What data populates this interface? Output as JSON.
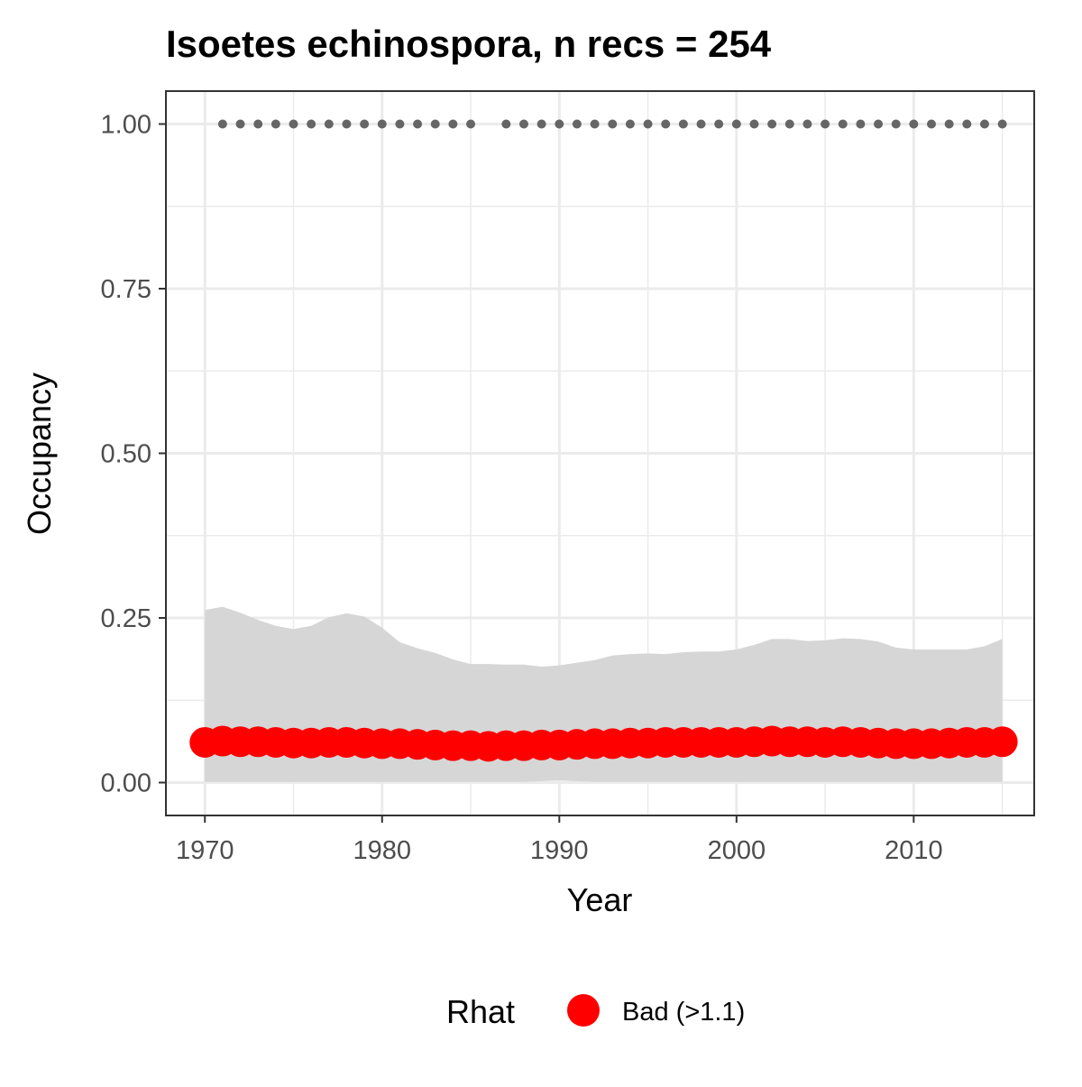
{
  "chart_data": {
    "type": "line",
    "title": "Isoetes echinospora, n recs = 254",
    "xlabel": "Year",
    "ylabel": "Occupancy",
    "xlim": [
      1967.8,
      2016.8
    ],
    "ylim": [
      -0.05,
      1.05
    ],
    "x_ticks": [
      1970,
      1980,
      1990,
      2000,
      2010
    ],
    "x_tick_labels": [
      "1970",
      "1980",
      "1990",
      "2000",
      "2010"
    ],
    "y_ticks": [
      0,
      0.25,
      0.5,
      0.75,
      1.0
    ],
    "y_tick_labels": [
      "0.00",
      "0.25",
      "0.50",
      "0.75",
      "1.00"
    ],
    "grid": true,
    "legend": {
      "title": "Rhat",
      "position": "bottom",
      "entries": [
        {
          "label": "Bad (>1.1)",
          "color": "#ff0000"
        }
      ]
    },
    "colors": {
      "occupancy_point": "#ff0000",
      "ci_ribbon": "#d6d6d6",
      "record_dot": "#666666",
      "panel_border": "#333333",
      "grid_major": "#ebebeb",
      "tick_label": "#4d4d4d"
    },
    "series": [
      {
        "role": "occupancy_mean",
        "years": [
          1970,
          1971,
          1972,
          1973,
          1974,
          1975,
          1976,
          1977,
          1978,
          1979,
          1980,
          1981,
          1982,
          1983,
          1984,
          1985,
          1986,
          1987,
          1988,
          1989,
          1990,
          1991,
          1992,
          1993,
          1994,
          1995,
          1996,
          1997,
          1998,
          1999,
          2000,
          2001,
          2002,
          2003,
          2004,
          2005,
          2006,
          2007,
          2008,
          2009,
          2010,
          2011,
          2012,
          2013,
          2014,
          2015
        ],
        "values": [
          0.061,
          0.063,
          0.062,
          0.062,
          0.061,
          0.06,
          0.06,
          0.061,
          0.061,
          0.06,
          0.059,
          0.059,
          0.058,
          0.057,
          0.056,
          0.056,
          0.055,
          0.056,
          0.056,
          0.057,
          0.057,
          0.058,
          0.059,
          0.059,
          0.06,
          0.06,
          0.061,
          0.061,
          0.061,
          0.061,
          0.061,
          0.062,
          0.063,
          0.062,
          0.062,
          0.061,
          0.062,
          0.061,
          0.06,
          0.059,
          0.059,
          0.059,
          0.06,
          0.061,
          0.061,
          0.062
        ]
      },
      {
        "role": "ci_upper",
        "years": [
          1970,
          1971,
          1972,
          1973,
          1974,
          1975,
          1976,
          1977,
          1978,
          1979,
          1980,
          1981,
          1982,
          1983,
          1984,
          1985,
          1986,
          1987,
          1988,
          1989,
          1990,
          1991,
          1992,
          1993,
          1994,
          1995,
          1996,
          1997,
          1998,
          1999,
          2000,
          2001,
          2002,
          2003,
          2004,
          2005,
          2006,
          2007,
          2008,
          2009,
          2010,
          2011,
          2012,
          2013,
          2014,
          2015
        ],
        "values": [
          0.262,
          0.267,
          0.258,
          0.247,
          0.238,
          0.233,
          0.238,
          0.251,
          0.257,
          0.252,
          0.235,
          0.213,
          0.204,
          0.197,
          0.187,
          0.18,
          0.18,
          0.179,
          0.179,
          0.176,
          0.178,
          0.182,
          0.186,
          0.193,
          0.195,
          0.196,
          0.195,
          0.198,
          0.199,
          0.199,
          0.202,
          0.209,
          0.218,
          0.218,
          0.215,
          0.216,
          0.219,
          0.218,
          0.214,
          0.205,
          0.202,
          0.202,
          0.202,
          0.202,
          0.207,
          0.218
        ]
      },
      {
        "role": "ci_lower",
        "years": [
          1970,
          1971,
          1972,
          1973,
          1974,
          1975,
          1976,
          1977,
          1978,
          1979,
          1980,
          1981,
          1982,
          1983,
          1984,
          1985,
          1986,
          1987,
          1988,
          1989,
          1990,
          1991,
          1992,
          1993,
          1994,
          1995,
          1996,
          1997,
          1998,
          1999,
          2000,
          2001,
          2002,
          2003,
          2004,
          2005,
          2006,
          2007,
          2008,
          2009,
          2010,
          2011,
          2012,
          2013,
          2014,
          2015
        ],
        "values": [
          0.001,
          0.001,
          0.001,
          0.001,
          0.001,
          0.001,
          0.001,
          0.001,
          0.001,
          0.001,
          0.001,
          0.001,
          0.001,
          0.001,
          0.001,
          0.001,
          0.001,
          0.001,
          0.001,
          0.002,
          0.003,
          0.002,
          0.001,
          0.001,
          0.001,
          0.001,
          0.001,
          0.001,
          0.001,
          0.001,
          0.001,
          0.001,
          0.001,
          0.001,
          0.001,
          0.001,
          0.001,
          0.001,
          0.001,
          0.001,
          0.001,
          0.001,
          0.001,
          0.001,
          0.001,
          0.001
        ]
      },
      {
        "role": "records_indicator",
        "years": [
          1971,
          1972,
          1973,
          1974,
          1975,
          1976,
          1977,
          1978,
          1979,
          1980,
          1981,
          1982,
          1983,
          1984,
          1985,
          1987,
          1988,
          1989,
          1990,
          1991,
          1992,
          1993,
          1994,
          1995,
          1996,
          1997,
          1998,
          1999,
          2000,
          2001,
          2002,
          2003,
          2004,
          2005,
          2006,
          2007,
          2008,
          2009,
          2010,
          2011,
          2012,
          2013,
          2014,
          2015
        ],
        "values": [
          1,
          1,
          1,
          1,
          1,
          1,
          1,
          1,
          1,
          1,
          1,
          1,
          1,
          1,
          1,
          1,
          1,
          1,
          1,
          1,
          1,
          1,
          1,
          1,
          1,
          1,
          1,
          1,
          1,
          1,
          1,
          1,
          1,
          1,
          1,
          1,
          1,
          1,
          1,
          1,
          1,
          1,
          1,
          1
        ]
      }
    ]
  }
}
